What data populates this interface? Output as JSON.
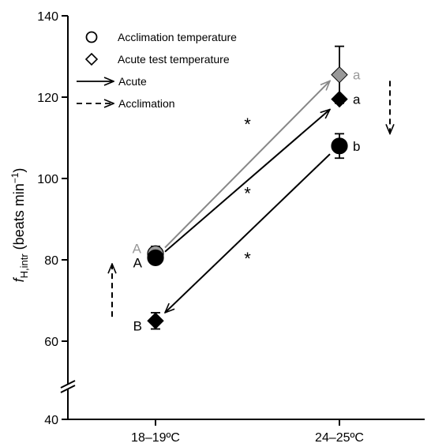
{
  "chart_data": {
    "type": "scatter",
    "categories": [
      "18–19ºC",
      "24–25ºC"
    ],
    "ylabel": {
      "main": "f",
      "sub": "H,intr",
      "rest": " (beats min",
      "sup": "−1",
      "close": ")"
    },
    "ylim": [
      40,
      140
    ],
    "y_ticks": [
      40,
      60,
      80,
      100,
      120,
      140
    ],
    "y_tick_labels": [
      "40",
      "60",
      "80",
      "100",
      "120",
      "140"
    ],
    "axis_break_between": [
      40,
      60
    ],
    "grid": false,
    "legend": {
      "placement": "top-left",
      "entries": [
        {
          "symbol": "circle",
          "label": "Acclimation temperature"
        },
        {
          "symbol": "diamond",
          "label": "Acute test temperature"
        },
        {
          "symbol": "arrow-solid",
          "label": "Acute"
        },
        {
          "symbol": "arrow-dashed",
          "label": "Acclimation"
        }
      ]
    },
    "points": [
      {
        "name": "grey-circle",
        "category": "18–19ºC",
        "marker": "circle",
        "color": "#999999",
        "y": 81.5,
        "error": 1.8,
        "label": "A",
        "label_color": "#999999",
        "label_pos": "above-left"
      },
      {
        "name": "black-circle",
        "category": "18–19ºC",
        "marker": "circle",
        "color": "#000000",
        "y": 80.5,
        "error": 0.8,
        "label": "A",
        "label_color": "#000000",
        "label_pos": "left"
      },
      {
        "name": "black-diamond",
        "category": "18–19ºC",
        "marker": "diamond",
        "color": "#000000",
        "y": 65.0,
        "error": 2.0,
        "label": "B",
        "label_color": "#000000",
        "label_pos": "left"
      },
      {
        "name": "grey-diamond",
        "category": "24–25ºC",
        "marker": "diamond",
        "color": "#999999",
        "y": 125.5,
        "error": 7.0,
        "label": "a",
        "label_color": "#999999",
        "label_pos": "right"
      },
      {
        "name": "black-diamond",
        "category": "24–25ºC",
        "marker": "diamond",
        "color": "#000000",
        "y": 119.5,
        "error": 0.8,
        "label": "a",
        "label_color": "#000000",
        "label_pos": "right"
      },
      {
        "name": "black-circle",
        "category": "24–25ºC",
        "marker": "circle",
        "color": "#000000",
        "y": 108.0,
        "error": 3.0,
        "label": "b",
        "label_color": "#000000",
        "label_pos": "right"
      }
    ],
    "arrows": [
      {
        "name": "acute-grey-arrow",
        "style": "solid",
        "color": "#888888",
        "from": {
          "category": "18–19ºC",
          "y": 83
        },
        "to": {
          "category": "24–25ºC",
          "y": 124
        }
      },
      {
        "name": "acute-black-arrow-up",
        "style": "solid",
        "color": "#000000",
        "from": {
          "category": "18–19ºC",
          "y": 82
        },
        "to": {
          "category": "24–25ºC",
          "y": 117
        }
      },
      {
        "name": "acute-black-arrow-down",
        "style": "solid",
        "color": "#000000",
        "from": {
          "category": "24–25ºC",
          "y": 106
        },
        "to": {
          "category": "18–19ºC",
          "y": 67
        }
      },
      {
        "name": "acclimation-dashed-arrow-up",
        "style": "dashed",
        "color": "#000000",
        "from": {
          "category": "18–19ºC",
          "y": 66
        },
        "to": {
          "category": "18–19ºC",
          "y": 79
        }
      },
      {
        "name": "acclimation-dashed-arrow-down",
        "style": "dashed",
        "color": "#000000",
        "from": {
          "category": "24–25ºC",
          "y": 124
        },
        "to": {
          "category": "24–25ºC",
          "y": 111
        }
      }
    ],
    "annotations": [
      {
        "text": "*",
        "y": 114
      },
      {
        "text": "*",
        "y": 97
      },
      {
        "text": "*",
        "y": 81
      }
    ]
  }
}
